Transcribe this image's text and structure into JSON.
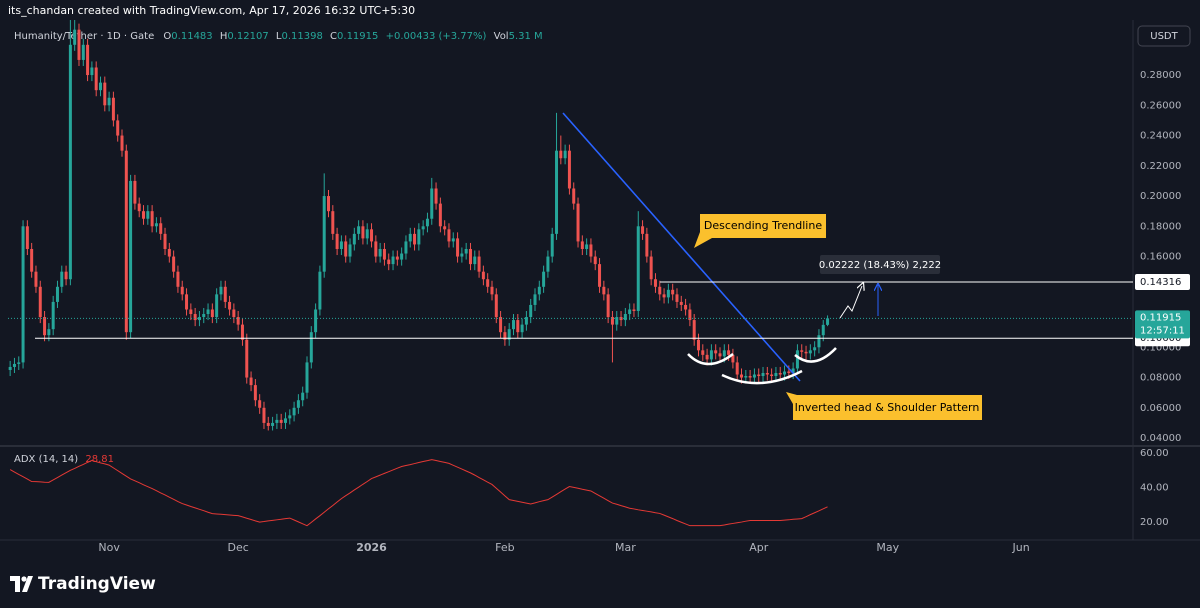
{
  "header": "its_chandan created with TradingView.com, Apr 17, 2026 16:32 UTC+5:30",
  "logo": "TradingView",
  "chart_data": {
    "type": "candlestick",
    "title": "Humanity/Tether · 1D · Gate",
    "ohlc_labels": [
      "O",
      "H",
      "L",
      "C"
    ],
    "change": "+0.00433 (+3.77%)",
    "volume_label": "Vol",
    "volume": "5.31 M",
    "currency": "USDT",
    "up_color": "#26a69a",
    "down_color": "#ef5350",
    "candles": [
      [
        0.085,
        0.091,
        0.081,
        0.087
      ],
      [
        0.087,
        0.093,
        0.083,
        0.089
      ],
      [
        0.089,
        0.094,
        0.085,
        0.09
      ],
      [
        0.09,
        0.184,
        0.086,
        0.18
      ],
      [
        0.18,
        0.184,
        0.161,
        0.165
      ],
      [
        0.165,
        0.169,
        0.146,
        0.15
      ],
      [
        0.15,
        0.154,
        0.136,
        0.14
      ],
      [
        0.14,
        0.144,
        0.116,
        0.12
      ],
      [
        0.12,
        0.124,
        0.104,
        0.108
      ],
      [
        0.108,
        0.116,
        0.104,
        0.112
      ],
      [
        0.112,
        0.134,
        0.108,
        0.13
      ],
      [
        0.13,
        0.144,
        0.126,
        0.14
      ],
      [
        0.14,
        0.154,
        0.136,
        0.15
      ],
      [
        0.15,
        0.154,
        0.141,
        0.145
      ],
      [
        0.145,
        0.33,
        0.141,
        0.3
      ],
      [
        0.3,
        0.33,
        0.296,
        0.31
      ],
      [
        0.31,
        0.314,
        0.286,
        0.29
      ],
      [
        0.29,
        0.304,
        0.286,
        0.3
      ],
      [
        0.3,
        0.304,
        0.276,
        0.28
      ],
      [
        0.28,
        0.289,
        0.276,
        0.285
      ],
      [
        0.285,
        0.289,
        0.266,
        0.27
      ],
      [
        0.27,
        0.279,
        0.266,
        0.275
      ],
      [
        0.275,
        0.279,
        0.256,
        0.26
      ],
      [
        0.26,
        0.269,
        0.256,
        0.265
      ],
      [
        0.265,
        0.269,
        0.246,
        0.25
      ],
      [
        0.25,
        0.254,
        0.236,
        0.24
      ],
      [
        0.24,
        0.244,
        0.226,
        0.23
      ],
      [
        0.23,
        0.234,
        0.105,
        0.11
      ],
      [
        0.11,
        0.214,
        0.106,
        0.21
      ],
      [
        0.21,
        0.214,
        0.191,
        0.195
      ],
      [
        0.195,
        0.199,
        0.186,
        0.19
      ],
      [
        0.19,
        0.194,
        0.181,
        0.185
      ],
      [
        0.185,
        0.194,
        0.181,
        0.19
      ],
      [
        0.19,
        0.194,
        0.176,
        0.18
      ],
      [
        0.18,
        0.186,
        0.176,
        0.182
      ],
      [
        0.182,
        0.186,
        0.171,
        0.175
      ],
      [
        0.175,
        0.179,
        0.161,
        0.165
      ],
      [
        0.165,
        0.169,
        0.156,
        0.16
      ],
      [
        0.16,
        0.164,
        0.146,
        0.15
      ],
      [
        0.15,
        0.154,
        0.136,
        0.14
      ],
      [
        0.14,
        0.144,
        0.131,
        0.135
      ],
      [
        0.135,
        0.139,
        0.121,
        0.125
      ],
      [
        0.125,
        0.129,
        0.118,
        0.122
      ],
      [
        0.122,
        0.126,
        0.114,
        0.118
      ],
      [
        0.118,
        0.124,
        0.114,
        0.12
      ],
      [
        0.12,
        0.126,
        0.116,
        0.122
      ],
      [
        0.122,
        0.129,
        0.118,
        0.125
      ],
      [
        0.125,
        0.129,
        0.116,
        0.12
      ],
      [
        0.12,
        0.139,
        0.116,
        0.135
      ],
      [
        0.135,
        0.144,
        0.131,
        0.14
      ],
      [
        0.14,
        0.144,
        0.126,
        0.13
      ],
      [
        0.13,
        0.134,
        0.121,
        0.125
      ],
      [
        0.125,
        0.129,
        0.116,
        0.12
      ],
      [
        0.12,
        0.124,
        0.111,
        0.115
      ],
      [
        0.115,
        0.119,
        0.101,
        0.105
      ],
      [
        0.105,
        0.109,
        0.076,
        0.08
      ],
      [
        0.08,
        0.084,
        0.071,
        0.075
      ],
      [
        0.075,
        0.079,
        0.061,
        0.065
      ],
      [
        0.065,
        0.069,
        0.056,
        0.06
      ],
      [
        0.06,
        0.064,
        0.046,
        0.05
      ],
      [
        0.05,
        0.054,
        0.045,
        0.048
      ],
      [
        0.048,
        0.054,
        0.045,
        0.05
      ],
      [
        0.05,
        0.056,
        0.046,
        0.052
      ],
      [
        0.052,
        0.056,
        0.046,
        0.05
      ],
      [
        0.05,
        0.057,
        0.046,
        0.053
      ],
      [
        0.053,
        0.059,
        0.049,
        0.055
      ],
      [
        0.055,
        0.064,
        0.051,
        0.06
      ],
      [
        0.06,
        0.069,
        0.056,
        0.065
      ],
      [
        0.065,
        0.074,
        0.061,
        0.07
      ],
      [
        0.07,
        0.094,
        0.066,
        0.09
      ],
      [
        0.09,
        0.114,
        0.086,
        0.11
      ],
      [
        0.11,
        0.129,
        0.106,
        0.125
      ],
      [
        0.125,
        0.154,
        0.121,
        0.15
      ],
      [
        0.15,
        0.215,
        0.146,
        0.2
      ],
      [
        0.2,
        0.204,
        0.186,
        0.19
      ],
      [
        0.19,
        0.194,
        0.171,
        0.175
      ],
      [
        0.175,
        0.179,
        0.161,
        0.165
      ],
      [
        0.165,
        0.174,
        0.161,
        0.17
      ],
      [
        0.17,
        0.174,
        0.156,
        0.16
      ],
      [
        0.16,
        0.172,
        0.156,
        0.168
      ],
      [
        0.168,
        0.179,
        0.164,
        0.175
      ],
      [
        0.175,
        0.184,
        0.171,
        0.18
      ],
      [
        0.18,
        0.184,
        0.168,
        0.172
      ],
      [
        0.172,
        0.182,
        0.168,
        0.178
      ],
      [
        0.178,
        0.182,
        0.166,
        0.17
      ],
      [
        0.17,
        0.174,
        0.156,
        0.16
      ],
      [
        0.16,
        0.169,
        0.156,
        0.165
      ],
      [
        0.165,
        0.169,
        0.154,
        0.158
      ],
      [
        0.158,
        0.162,
        0.151,
        0.155
      ],
      [
        0.155,
        0.164,
        0.151,
        0.16
      ],
      [
        0.16,
        0.164,
        0.154,
        0.158
      ],
      [
        0.158,
        0.166,
        0.154,
        0.162
      ],
      [
        0.162,
        0.174,
        0.158,
        0.17
      ],
      [
        0.17,
        0.179,
        0.166,
        0.175
      ],
      [
        0.175,
        0.179,
        0.164,
        0.168
      ],
      [
        0.168,
        0.182,
        0.164,
        0.178
      ],
      [
        0.178,
        0.184,
        0.174,
        0.18
      ],
      [
        0.18,
        0.189,
        0.176,
        0.185
      ],
      [
        0.185,
        0.212,
        0.181,
        0.205
      ],
      [
        0.205,
        0.209,
        0.191,
        0.195
      ],
      [
        0.195,
        0.199,
        0.176,
        0.18
      ],
      [
        0.18,
        0.184,
        0.174,
        0.178
      ],
      [
        0.178,
        0.182,
        0.166,
        0.17
      ],
      [
        0.17,
        0.176,
        0.166,
        0.172
      ],
      [
        0.172,
        0.176,
        0.156,
        0.16
      ],
      [
        0.16,
        0.166,
        0.156,
        0.162
      ],
      [
        0.162,
        0.169,
        0.158,
        0.165
      ],
      [
        0.165,
        0.169,
        0.151,
        0.155
      ],
      [
        0.155,
        0.164,
        0.151,
        0.16
      ],
      [
        0.16,
        0.164,
        0.146,
        0.15
      ],
      [
        0.15,
        0.154,
        0.141,
        0.145
      ],
      [
        0.145,
        0.149,
        0.136,
        0.14
      ],
      [
        0.14,
        0.144,
        0.131,
        0.135
      ],
      [
        0.135,
        0.139,
        0.116,
        0.12
      ],
      [
        0.12,
        0.124,
        0.106,
        0.11
      ],
      [
        0.11,
        0.114,
        0.101,
        0.105
      ],
      [
        0.105,
        0.116,
        0.101,
        0.112
      ],
      [
        0.112,
        0.122,
        0.108,
        0.118
      ],
      [
        0.118,
        0.122,
        0.106,
        0.11
      ],
      [
        0.11,
        0.119,
        0.106,
        0.115
      ],
      [
        0.115,
        0.124,
        0.111,
        0.12
      ],
      [
        0.12,
        0.132,
        0.116,
        0.128
      ],
      [
        0.128,
        0.139,
        0.124,
        0.135
      ],
      [
        0.135,
        0.144,
        0.131,
        0.14
      ],
      [
        0.14,
        0.154,
        0.136,
        0.15
      ],
      [
        0.15,
        0.164,
        0.146,
        0.16
      ],
      [
        0.16,
        0.179,
        0.156,
        0.175
      ],
      [
        0.175,
        0.255,
        0.171,
        0.23
      ],
      [
        0.23,
        0.24,
        0.221,
        0.225
      ],
      [
        0.225,
        0.234,
        0.221,
        0.23
      ],
      [
        0.23,
        0.234,
        0.201,
        0.205
      ],
      [
        0.205,
        0.209,
        0.191,
        0.195
      ],
      [
        0.195,
        0.199,
        0.166,
        0.17
      ],
      [
        0.17,
        0.174,
        0.161,
        0.165
      ],
      [
        0.165,
        0.172,
        0.161,
        0.168
      ],
      [
        0.168,
        0.172,
        0.156,
        0.16
      ],
      [
        0.16,
        0.164,
        0.151,
        0.155
      ],
      [
        0.155,
        0.159,
        0.136,
        0.14
      ],
      [
        0.14,
        0.144,
        0.131,
        0.135
      ],
      [
        0.135,
        0.139,
        0.116,
        0.12
      ],
      [
        0.12,
        0.124,
        0.09,
        0.115
      ],
      [
        0.115,
        0.124,
        0.111,
        0.12
      ],
      [
        0.12,
        0.124,
        0.114,
        0.118
      ],
      [
        0.118,
        0.126,
        0.114,
        0.122
      ],
      [
        0.122,
        0.129,
        0.118,
        0.125
      ],
      [
        0.125,
        0.129,
        0.12,
        0.124
      ],
      [
        0.124,
        0.19,
        0.12,
        0.18
      ],
      [
        0.18,
        0.184,
        0.171,
        0.175
      ],
      [
        0.175,
        0.179,
        0.156,
        0.16
      ],
      [
        0.16,
        0.164,
        0.141,
        0.145
      ],
      [
        0.145,
        0.149,
        0.136,
        0.14
      ],
      [
        0.14,
        0.144,
        0.131,
        0.135
      ],
      [
        0.135,
        0.139,
        0.129,
        0.133
      ],
      [
        0.133,
        0.142,
        0.129,
        0.138
      ],
      [
        0.138,
        0.142,
        0.131,
        0.135
      ],
      [
        0.135,
        0.139,
        0.126,
        0.13
      ],
      [
        0.13,
        0.134,
        0.124,
        0.128
      ],
      [
        0.128,
        0.132,
        0.121,
        0.125
      ],
      [
        0.125,
        0.129,
        0.114,
        0.118
      ],
      [
        0.118,
        0.122,
        0.101,
        0.105
      ],
      [
        0.105,
        0.109,
        0.094,
        0.098
      ],
      [
        0.098,
        0.102,
        0.091,
        0.095
      ],
      [
        0.095,
        0.099,
        0.088,
        0.092
      ],
      [
        0.092,
        0.102,
        0.088,
        0.098
      ],
      [
        0.098,
        0.102,
        0.092,
        0.096
      ],
      [
        0.096,
        0.1,
        0.09,
        0.094
      ],
      [
        0.094,
        0.102,
        0.09,
        0.098
      ],
      [
        0.098,
        0.102,
        0.091,
        0.095
      ],
      [
        0.095,
        0.099,
        0.086,
        0.09
      ],
      [
        0.09,
        0.094,
        0.078,
        0.082
      ],
      [
        0.082,
        0.086,
        0.076,
        0.08
      ],
      [
        0.08,
        0.085,
        0.076,
        0.081
      ],
      [
        0.081,
        0.085,
        0.076,
        0.08
      ],
      [
        0.08,
        0.086,
        0.076,
        0.082
      ],
      [
        0.082,
        0.086,
        0.077,
        0.081
      ],
      [
        0.081,
        0.087,
        0.077,
        0.083
      ],
      [
        0.083,
        0.087,
        0.078,
        0.082
      ],
      [
        0.082,
        0.086,
        0.077,
        0.081
      ],
      [
        0.081,
        0.087,
        0.077,
        0.083
      ],
      [
        0.083,
        0.087,
        0.078,
        0.082
      ],
      [
        0.082,
        0.088,
        0.078,
        0.084
      ],
      [
        0.084,
        0.088,
        0.079,
        0.083
      ],
      [
        0.083,
        0.09,
        0.079,
        0.086
      ],
      [
        0.086,
        0.102,
        0.082,
        0.098
      ],
      [
        0.098,
        0.102,
        0.093,
        0.097
      ],
      [
        0.097,
        0.101,
        0.092,
        0.096
      ],
      [
        0.096,
        0.102,
        0.092,
        0.098
      ],
      [
        0.098,
        0.104,
        0.094,
        0.1
      ],
      [
        0.1,
        0.112,
        0.096,
        0.108
      ],
      [
        0.108,
        0.118,
        0.104,
        0.11483
      ],
      [
        0.11483,
        0.12107,
        0.11398,
        0.11915
      ]
    ],
    "xlim": [
      -0.5,
      261
    ],
    "xticks": [
      {
        "value": 23,
        "label": "Nov"
      },
      {
        "value": 53,
        "label": "Dec"
      },
      {
        "value": 84,
        "label": "2026"
      },
      {
        "value": 115,
        "label": "Feb"
      },
      {
        "value": 143,
        "label": "Mar"
      },
      {
        "value": 174,
        "label": "Apr"
      },
      {
        "value": 204,
        "label": "May"
      },
      {
        "value": 235,
        "label": "Jun"
      }
    ],
    "ylim": [
      0.0354,
      0.3164
    ],
    "yticks": [
      {
        "value": 0.04,
        "label": "0.04000"
      },
      {
        "value": 0.06,
        "label": "0.06000"
      },
      {
        "value": 0.08,
        "label": "0.08000"
      },
      {
        "value": 0.1,
        "label": "0.10000"
      },
      {
        "value": 0.12,
        "label": "0.12000"
      },
      {
        "value": 0.14,
        "label": "0.14000"
      },
      {
        "value": 0.16,
        "label": "0.16000"
      },
      {
        "value": 0.18,
        "label": "0.18000"
      },
      {
        "value": 0.2,
        "label": "0.20000"
      },
      {
        "value": 0.22,
        "label": "0.22000"
      },
      {
        "value": 0.24,
        "label": "0.24000"
      },
      {
        "value": 0.26,
        "label": "0.26000"
      },
      {
        "value": 0.28,
        "label": "0.28000"
      }
    ],
    "levels": [
      0.14316,
      {
        "value": 0.106,
        "label": "0.10600"
      }
    ],
    "countdown": "12:57:11",
    "annotations": [
      "Descending Trendline",
      "Inverted head & Shoulder Pattern"
    ],
    "measure": "0.02222 (18.43%) 2,222",
    "indicator": {
      "type": "line",
      "name": "ADX (14, 14)",
      "color": "#e53935",
      "ylim": [
        9.6,
        63.5
      ],
      "yticks": [
        {
          "value": 60,
          "label": "60.00"
        },
        {
          "value": 40,
          "label": "40.00"
        },
        {
          "value": 20,
          "label": "20.00"
        }
      ],
      "values": [
        50.4,
        49.0,
        47.6,
        46.3,
        44.9,
        43.5,
        43.4,
        43.3,
        43.1,
        43.0,
        44.4,
        45.8,
        47.2,
        48.6,
        50.0,
        51.1,
        52.3,
        53.4,
        54.6,
        55.7,
        55.0,
        54.3,
        53.7,
        53.0,
        51.4,
        49.8,
        48.2,
        46.6,
        45.0,
        43.9,
        42.8,
        41.6,
        40.5,
        39.4,
        38.2,
        36.9,
        35.7,
        34.4,
        33.2,
        31.9,
        30.7,
        29.9,
        29.0,
        28.2,
        27.4,
        26.6,
        25.7,
        24.9,
        24.7,
        24.5,
        24.3,
        24.1,
        23.9,
        23.7,
        23.0,
        22.2,
        21.5,
        20.7,
        20.0,
        20.3,
        20.7,
        21.0,
        21.3,
        21.6,
        22.0,
        22.3,
        21.2,
        20.1,
        19.0,
        17.9,
        19.8,
        21.8,
        23.7,
        25.7,
        27.7,
        29.6,
        31.6,
        33.6,
        35.3,
        36.9,
        38.6,
        40.2,
        41.9,
        43.5,
        45.2,
        46.2,
        47.2,
        48.2,
        49.2,
        50.2,
        51.2,
        52.2,
        52.8,
        53.3,
        53.9,
        54.5,
        55.1,
        55.6,
        56.2,
        55.7,
        55.1,
        54.6,
        54.0,
        52.9,
        51.8,
        50.7,
        49.6,
        48.5,
        47.2,
        45.8,
        44.5,
        43.1,
        41.8,
        39.6,
        37.4,
        35.2,
        33.0,
        32.5,
        32.0,
        31.5,
        31.0,
        30.5,
        31.1,
        31.8,
        32.4,
        33.0,
        34.5,
        36.0,
        37.6,
        39.1,
        40.6,
        40.1,
        39.6,
        39.0,
        38.5,
        38.0,
        36.6,
        35.2,
        33.8,
        32.4,
        31.0,
        30.3,
        29.5,
        28.8,
        28.0,
        27.6,
        27.1,
        26.7,
        26.3,
        25.9,
        25.4,
        25.0,
        24.0,
        23.0,
        22.0,
        20.9,
        19.9,
        18.9,
        17.9,
        17.9,
        17.9,
        17.9,
        17.9,
        17.9,
        17.9,
        17.9,
        18.3,
        18.8,
        19.2,
        19.6,
        20.0,
        20.5,
        20.9,
        20.9,
        20.9,
        20.9,
        20.9,
        20.9,
        20.9,
        20.9,
        21.1,
        21.3,
        21.6,
        21.8,
        22.0,
        23.1,
        24.3,
        25.4,
        26.5,
        27.7,
        28.81
      ]
    }
  }
}
